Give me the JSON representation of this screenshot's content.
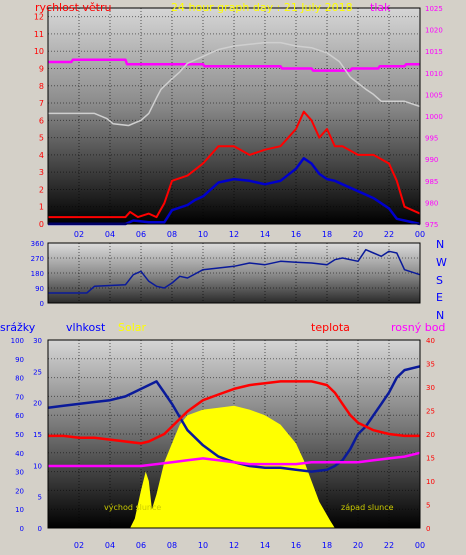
{
  "title": "24 hour graph day : 21 July 2018",
  "panel1": {
    "left_label": "rychlost větru",
    "right_label": "tlak"
  },
  "panel2": {
    "direction_labels": [
      "N",
      "W",
      "S",
      "E",
      "N"
    ]
  },
  "panel3": {
    "labels": {
      "rain": "srážky",
      "humidity": "vlhkost",
      "solar": "Solar",
      "temp": "teplota",
      "dew": "rosný bod"
    },
    "sunrise_label": "východ slunce",
    "sunset_label": "západ slunce"
  },
  "x_tick_labels": [
    "02",
    "04",
    "06",
    "08",
    "10",
    "12",
    "14",
    "16",
    "18",
    "20",
    "22",
    "00"
  ],
  "colors": {
    "wind_avg": "#0000cc",
    "wind_gust": "#ff0000",
    "pressure": "#ff00ff",
    "direction": "#0a1a9a",
    "humidity": "#0a1a9a",
    "temperature": "#ff0000",
    "dewpoint": "#ff00ff",
    "solar": "#ffff00",
    "title": "#ffff00",
    "label_red": "#ff0000",
    "label_magenta": "#ff00ff",
    "label_blue": "#0000ff"
  },
  "chart_data": [
    {
      "type": "line",
      "name": "wind and pressure",
      "x_unit": "hour",
      "xlim": [
        0,
        24
      ],
      "y_left_ticks": [
        "0",
        "1",
        "2",
        "3",
        "4",
        "5",
        "6",
        "7",
        "8",
        "9",
        "10",
        "11",
        "12"
      ],
      "ylim_left": [
        0,
        12.5
      ],
      "y_right_ticks": [
        "975",
        "980",
        "985",
        "990",
        "995",
        "1000",
        "1005",
        "1010",
        "1015",
        "1020",
        "1025"
      ],
      "ylim_right": [
        975,
        1025
      ],
      "series": [
        {
          "axis": "right",
          "color_key": "pressure",
          "x": [
            0,
            1.5,
            1.6,
            5.0,
            5.1,
            10.0,
            10.1,
            15.0,
            15.1,
            17.0,
            17.1,
            19.5,
            19.6,
            21.3,
            21.4,
            23.0,
            23.1,
            24
          ],
          "y": [
            1012.5,
            1012.5,
            1013,
            1013,
            1012,
            1012,
            1011.5,
            1011.5,
            1011,
            1011,
            1010.5,
            1010.5,
            1011,
            1011,
            1011.5,
            1011.5,
            1012,
            1012
          ]
        },
        {
          "axis": "left",
          "color_key": "pressure",
          "x": [
            0,
            3,
            3.8,
            4.2,
            5.2,
            6,
            6.5,
            7,
            7.3,
            8,
            8.5,
            9,
            10,
            11,
            12,
            13,
            14,
            15,
            16,
            17,
            18,
            18.8,
            19.5,
            20.5,
            21,
            21.5,
            22,
            23,
            24
          ],
          "y": [
            6.4,
            6.4,
            6.1,
            5.8,
            5.7,
            6,
            6.4,
            7.3,
            7.8,
            8.4,
            8.8,
            9.3,
            9.7,
            10.1,
            10.3,
            10.4,
            10.5,
            10.5,
            10.3,
            10.2,
            9.9,
            9.4,
            8.5,
            7.8,
            7.5,
            7.1,
            7.1,
            7.1,
            6.8
          ]
        },
        {
          "axis": "left",
          "color_key": "wind_gust",
          "x": [
            0,
            5,
            5.3,
            5.8,
            6.5,
            7,
            7.5,
            8,
            9,
            10,
            11,
            12,
            13,
            14,
            15,
            16,
            16.5,
            17,
            17.5,
            18,
            18.5,
            19,
            20,
            21,
            22,
            22.5,
            23,
            24
          ],
          "y": [
            0.4,
            0.4,
            0.7,
            0.4,
            0.6,
            0.4,
            1.2,
            2.5,
            2.8,
            3.5,
            4.5,
            4.5,
            4.0,
            4.3,
            4.5,
            5.5,
            6.5,
            6.0,
            5.0,
            5.5,
            4.5,
            4.5,
            4.0,
            4.0,
            3.5,
            2.5,
            1.0,
            0.6
          ]
        },
        {
          "axis": "left",
          "color_key": "wind_avg",
          "x": [
            0,
            5,
            5.5,
            6.5,
            7,
            7.5,
            8,
            9,
            9.5,
            10,
            11,
            12,
            13,
            14,
            15,
            16,
            16.5,
            17,
            17.5,
            18,
            18.5,
            19,
            20,
            21,
            22,
            22.5,
            23,
            24
          ],
          "y": [
            0,
            0,
            0.2,
            0.1,
            0.1,
            0.1,
            0.8,
            1.1,
            1.4,
            1.6,
            2.4,
            2.6,
            2.5,
            2.3,
            2.5,
            3.2,
            3.8,
            3.5,
            2.9,
            2.6,
            2.5,
            2.3,
            1.9,
            1.5,
            0.9,
            0.3,
            0.2,
            0
          ]
        }
      ]
    },
    {
      "type": "line",
      "name": "wind direction",
      "x_unit": "hour",
      "xlim": [
        0,
        24
      ],
      "y_ticks": [
        "0",
        "90",
        "180",
        "270",
        "360"
      ],
      "ylim": [
        0,
        360
      ],
      "series": [
        {
          "color_key": "direction",
          "x": [
            0,
            2.5,
            3.0,
            5.0,
            5.5,
            6.0,
            6.5,
            7.0,
            7.5,
            8.0,
            8.5,
            9.0,
            10,
            11,
            12,
            13,
            14,
            15,
            16,
            17,
            18,
            18.5,
            19,
            20,
            20.5,
            21,
            21.5,
            22,
            22.5,
            23,
            24
          ],
          "y": [
            60,
            60,
            100,
            110,
            170,
            190,
            130,
            100,
            90,
            120,
            160,
            150,
            200,
            210,
            220,
            240,
            230,
            250,
            245,
            240,
            230,
            260,
            270,
            250,
            320,
            300,
            280,
            310,
            300,
            200,
            170
          ]
        }
      ]
    },
    {
      "type": "area",
      "name": "rain humidity solar temperature dewpoint",
      "x_unit": "hour",
      "xlim": [
        0,
        24
      ],
      "y_axes": [
        {
          "key": "rain",
          "ticks": [
            "0",
            "10",
            "20",
            "30",
            "40",
            "50",
            "60",
            "70",
            "80",
            "90",
            "100"
          ],
          "lim": [
            0,
            100
          ]
        },
        {
          "key": "humidity",
          "ticks": [
            "0",
            "5",
            "10",
            "15",
            "20",
            "25",
            "30"
          ],
          "lim": [
            0,
            30
          ]
        },
        {
          "key": "temp",
          "ticks": [
            "0",
            "5",
            "10",
            "15",
            "20",
            "25",
            "30",
            "35",
            "40"
          ],
          "lim": [
            0,
            40
          ]
        }
      ],
      "series": [
        {
          "key": "solar",
          "color_key": "solar",
          "axis": "rain",
          "x": [
            5.3,
            5.6,
            6.0,
            6.3,
            6.5,
            6.7,
            7.0,
            7.5,
            8.0,
            8.5,
            9.0,
            10,
            11,
            12,
            13,
            14,
            15,
            16,
            16.5,
            17,
            17.5,
            18.2,
            18.5
          ],
          "y": [
            0,
            5,
            20,
            30,
            25,
            10,
            18,
            35,
            45,
            55,
            60,
            63,
            64,
            65,
            63,
            60,
            55,
            45,
            36,
            25,
            14,
            4,
            0
          ]
        },
        {
          "key": "humidity",
          "color_key": "humidity",
          "axis": "rain",
          "x": [
            0,
            1,
            2,
            3,
            4,
            5,
            5.5,
            6,
            6.5,
            7,
            7.5,
            8,
            9,
            10,
            11,
            12,
            13,
            14,
            15,
            16,
            17,
            18,
            18.5,
            19,
            19.5,
            20,
            20.5,
            21,
            21.5,
            22,
            22.5,
            23,
            24
          ],
          "y": [
            64,
            65,
            66,
            67,
            68,
            70,
            72,
            74,
            76,
            78,
            72,
            66,
            52,
            44,
            38,
            35,
            33,
            32,
            32,
            31,
            30,
            31,
            33,
            36,
            42,
            50,
            54,
            60,
            66,
            72,
            80,
            84,
            86
          ]
        },
        {
          "key": "temp",
          "color_key": "temperature",
          "axis": "rain",
          "x": [
            0,
            1,
            2,
            3,
            4,
            5,
            6,
            6.5,
            7,
            7.5,
            8,
            9,
            10,
            11,
            12,
            13,
            14,
            15,
            16,
            17,
            17.5,
            18,
            18.5,
            19,
            19.5,
            20,
            21,
            22,
            23,
            24
          ],
          "y": [
            49,
            49,
            48,
            48,
            47,
            46,
            45,
            46,
            48,
            50,
            54,
            62,
            68,
            71,
            74,
            76,
            77,
            78,
            78,
            78,
            77,
            76,
            72,
            66,
            60,
            56,
            52,
            50,
            49,
            49
          ]
        },
        {
          "key": "dew",
          "color_key": "dewpoint",
          "axis": "rain",
          "x": [
            0,
            1,
            2,
            3,
            4,
            5,
            6,
            7,
            8,
            9,
            10,
            11,
            12,
            13,
            14,
            15,
            16,
            17,
            18,
            19,
            20,
            21,
            22,
            23,
            24
          ],
          "y": [
            33,
            33,
            33,
            33,
            33,
            33,
            33,
            34,
            35,
            36,
            37,
            36,
            35,
            34,
            34,
            34,
            34,
            35,
            35,
            35,
            35,
            36,
            37,
            38,
            40
          ]
        }
      ]
    }
  ]
}
